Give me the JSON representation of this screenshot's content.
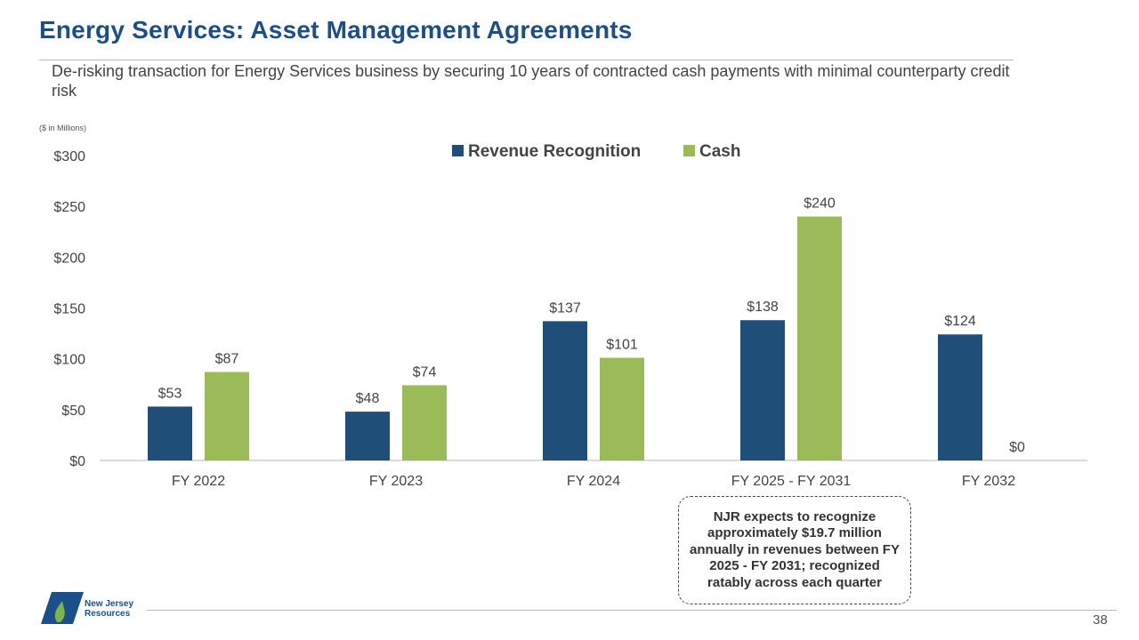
{
  "slide": {
    "title": "Energy Services: Asset Management Agreements",
    "subtitle": "De-risking transaction for Energy Services business by securing 10 years of contracted cash payments with minimal counterparty credit risk",
    "units": "($ in Millions)",
    "page_number": "38",
    "logo_line1": "New Jersey",
    "logo_line2": "Resources"
  },
  "callout": {
    "text": "NJR expects to recognize approximately $19.7 million annually in revenues between FY 2025 - FY 2031; recognized ratably across each quarter"
  },
  "colors": {
    "revenue": "#1f4e79",
    "cash": "#9bbb59",
    "brand": "#1b4f8a"
  },
  "chart_data": {
    "type": "bar",
    "title": "",
    "categories": [
      "FY 2022",
      "FY 2023",
      "FY 2024",
      "FY 2025 - FY 2031",
      "FY 2032"
    ],
    "series": [
      {
        "name": "Revenue Recognition",
        "values": [
          53,
          48,
          137,
          138,
          124
        ],
        "labels": [
          "$53",
          "$48",
          "$137",
          "$138",
          "$124"
        ]
      },
      {
        "name": "Cash",
        "values": [
          87,
          74,
          101,
          240,
          0
        ],
        "labels": [
          "$87",
          "$74",
          "$101",
          "$240",
          "$0"
        ]
      }
    ],
    "yticks": [
      0,
      50,
      100,
      150,
      200,
      250,
      300
    ],
    "ytick_labels": [
      "$0",
      "$50",
      "$100",
      "$150",
      "$200",
      "$250",
      "$300"
    ],
    "ylim": [
      0,
      300
    ],
    "xlabel": "",
    "ylabel": "",
    "legend": "top-center",
    "grid": false
  }
}
